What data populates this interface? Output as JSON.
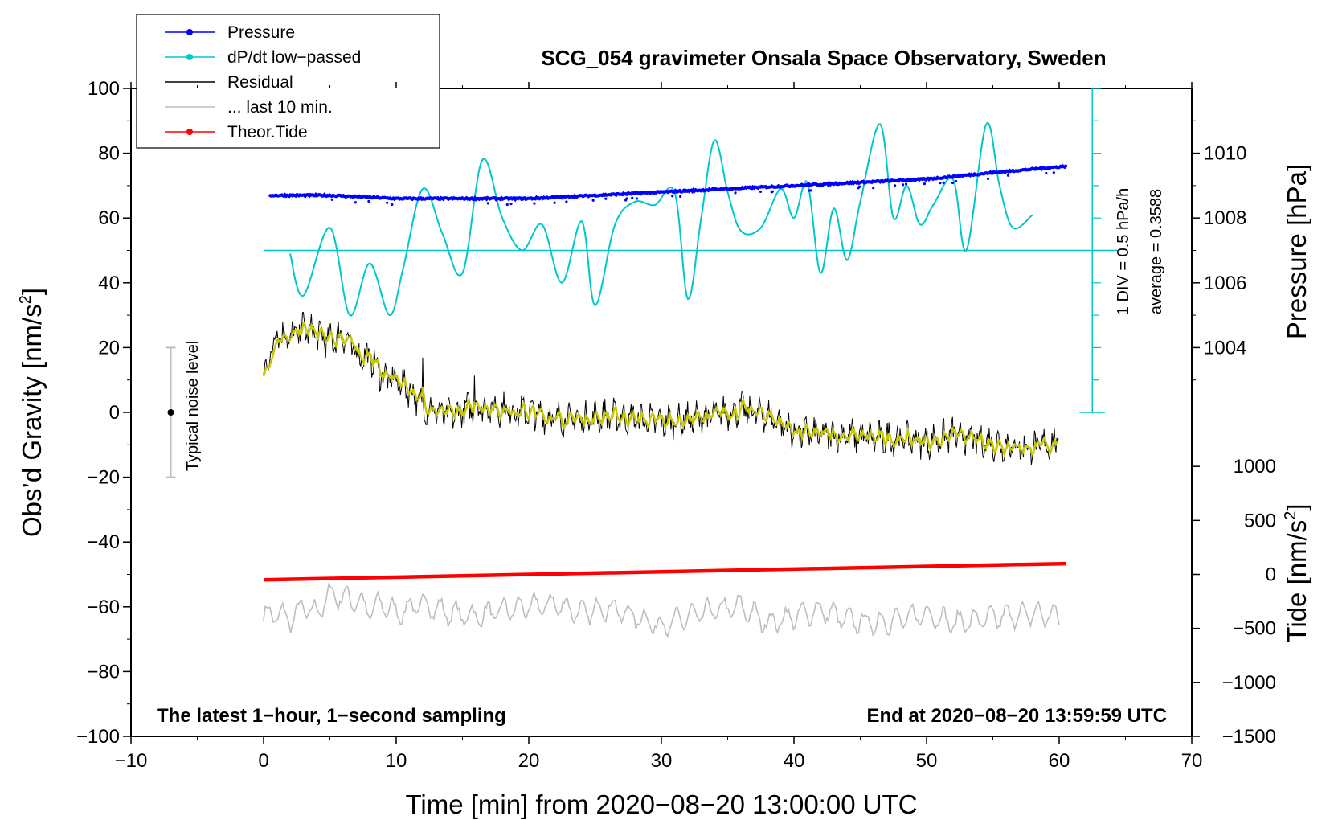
{
  "chart_data": {
    "type": "line",
    "title": "SCG_054 gravimeter Onsala Space Observatory, Sweden",
    "xlabel": "Time [min] from 2020−08−20 13:00:00 UTC",
    "ylabel_left": "Obs’d Gravity [nm/s²]",
    "ylabel_left_main": "Obs’d Gravity [nm/s",
    "ylabel_left_sup": "2",
    "ylabel_left_close": "]",
    "ylabel_pressure": "Pressure [hPa]",
    "ylabel_tide": "Tide [nm/s²]",
    "ylabel_tide_main": "Tide [nm/s",
    "ylabel_tide_sup": "2",
    "ylabel_tide_close": "]",
    "xlim": [
      -10,
      70
    ],
    "ylim": [
      -100,
      100
    ],
    "pressure_lim": [
      1002,
      1012
    ],
    "tide_lim": [
      -1500,
      1500
    ],
    "xticks": [
      "−10",
      "0",
      "10",
      "20",
      "30",
      "40",
      "50",
      "60",
      "70"
    ],
    "yticks": [
      "−100",
      "−80",
      "−60",
      "−40",
      "−20",
      "0",
      "20",
      "40",
      "60",
      "80",
      "100"
    ],
    "pressure_ticks": [
      "1004",
      "1006",
      "1008",
      "1010"
    ],
    "tide_ticks": [
      "−1500",
      "−1000",
      "−500",
      "0",
      "500",
      "1000"
    ],
    "legend": [
      {
        "label": "Pressure",
        "color": "#0000ff",
        "marker": true
      },
      {
        "label": "dP/dt low−passed",
        "color": "#00c8c8",
        "marker": true
      },
      {
        "label": "Residual",
        "color": "#000000",
        "marker": false
      },
      {
        "label": "... last 10 min.",
        "color": "#bebebe",
        "marker": false
      },
      {
        "label": "Theor.Tide",
        "color": "#ff0000",
        "marker": true
      }
    ],
    "annotations": {
      "noise": "Typical noise level",
      "noise_range": [
        -20,
        20
      ],
      "div": "1 DIV = 0.5 hPa/h",
      "average": "average = 0.3588",
      "bottom_left": "The latest 1−hour, 1−second sampling",
      "bottom_right": "End at 2020−08−20 13:59:59 UTC"
    },
    "series": [
      {
        "name": "Pressure",
        "color": "#0000ff",
        "axis": "pressure",
        "x": [
          0.5,
          5,
          10,
          15,
          20,
          25,
          30,
          35,
          40,
          45,
          50,
          55,
          60.5
        ],
        "values": [
          1008.7,
          1008.7,
          1008.6,
          1008.6,
          1008.6,
          1008.7,
          1008.8,
          1008.9,
          1009.0,
          1009.1,
          1009.2,
          1009.4,
          1009.6
        ]
      },
      {
        "name": "dP/dt low-passed",
        "color": "#00c8c8",
        "axis": "rate",
        "baseline": 50,
        "x": [
          2,
          3,
          5,
          6.5,
          8,
          9.5,
          10.5,
          12,
          13.5,
          15,
          16.5,
          18,
          19.5,
          21,
          22.5,
          24,
          25,
          26.5,
          28,
          29.5,
          31,
          32,
          33,
          34,
          35,
          36,
          37.5,
          39,
          40,
          41,
          42,
          43,
          44,
          45,
          46.5,
          47.5,
          48.5,
          49.5,
          50.5,
          52,
          53,
          54.5,
          55.5,
          56.5,
          58
        ],
        "values": [
          49,
          36,
          57,
          30,
          46,
          30,
          44,
          69,
          55,
          43,
          78,
          60,
          50,
          58,
          40,
          59,
          33,
          58,
          65,
          64,
          68,
          35,
          60,
          84,
          68,
          56,
          57,
          69,
          60,
          71,
          43,
          63,
          47,
          65,
          89,
          60,
          70,
          58,
          64,
          72,
          50,
          89,
          70,
          57,
          61
        ]
      },
      {
        "name": "Residual",
        "color": "#000000",
        "axis": "gravity",
        "x": [
          0,
          1,
          2,
          3,
          4,
          5,
          6,
          7,
          8,
          9,
          10,
          11,
          12,
          14,
          16,
          18,
          20,
          22,
          24,
          26,
          28,
          30,
          32,
          34,
          36,
          38,
          40,
          42,
          44,
          46,
          48,
          50,
          52,
          54,
          56,
          58,
          60
        ],
        "values": [
          11,
          25,
          23,
          26,
          24,
          22,
          24,
          18,
          17,
          11,
          10,
          7,
          2,
          -1,
          2,
          1,
          0,
          -2,
          -2,
          -1,
          -2,
          -3,
          -2,
          -1,
          1,
          -1,
          -6,
          -7,
          -7,
          -8,
          -8,
          -9,
          -7,
          -9,
          -10,
          -11,
          -9
        ]
      },
      {
        "name": "... last 10 min.",
        "color": "#bebebe",
        "axis": "gravity",
        "x": [
          0,
          1,
          2,
          3,
          4,
          5,
          6,
          7,
          8,
          9,
          10,
          12,
          14,
          16,
          18,
          20,
          22,
          24,
          26,
          28,
          30,
          32,
          34,
          36,
          38,
          40,
          42,
          44,
          46,
          48,
          50,
          52,
          54,
          56,
          58,
          60
        ],
        "values": [
          -63,
          -62,
          -64,
          -60,
          -62,
          -56,
          -57,
          -58,
          -61,
          -59,
          -62,
          -59,
          -62,
          -63,
          -61,
          -60,
          -59,
          -62,
          -60,
          -63,
          -66,
          -63,
          -61,
          -60,
          -65,
          -63,
          -61,
          -64,
          -65,
          -64,
          -62,
          -65,
          -64,
          -63,
          -62,
          -63
        ]
      },
      {
        "name": "Theor.Tide",
        "color": "#ff0000",
        "axis": "tide",
        "x": [
          0,
          60.5
        ],
        "values": [
          -50,
          100
        ]
      }
    ]
  }
}
